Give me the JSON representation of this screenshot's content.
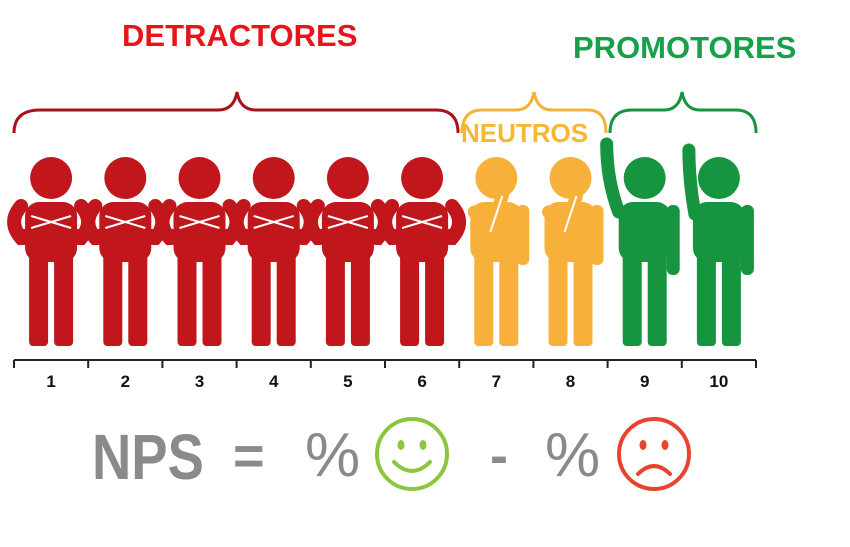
{
  "groups": {
    "detractors": {
      "label": "DETRACTORES",
      "color": "#c0161c",
      "scores": [
        1,
        2,
        3,
        4,
        5,
        6
      ]
    },
    "neutrals": {
      "label": "NEUTROS",
      "color": "#f7b03a",
      "scores": [
        7,
        8
      ]
    },
    "promoters": {
      "label": "PROMOTORES",
      "color": "#16943f",
      "scores": [
        9,
        10
      ]
    }
  },
  "scale": {
    "ticks": [
      "1",
      "2",
      "3",
      "4",
      "5",
      "6",
      "7",
      "8",
      "9",
      "10"
    ]
  },
  "formula": {
    "nps": "NPS",
    "equals": "=",
    "percent_positive": "%",
    "minus": "-",
    "percent_negative": "%",
    "positive_icon": "smiley-face-icon",
    "positive_color": "#8cc63e",
    "negative_icon": "frowning-face-icon",
    "negative_color": "#e8432e"
  },
  "colors": {
    "detractor_label": "#e8141b",
    "promoter_label": "#17a04a",
    "neutral_label": "#f7b733",
    "formula_text": "#8a8a8a"
  }
}
